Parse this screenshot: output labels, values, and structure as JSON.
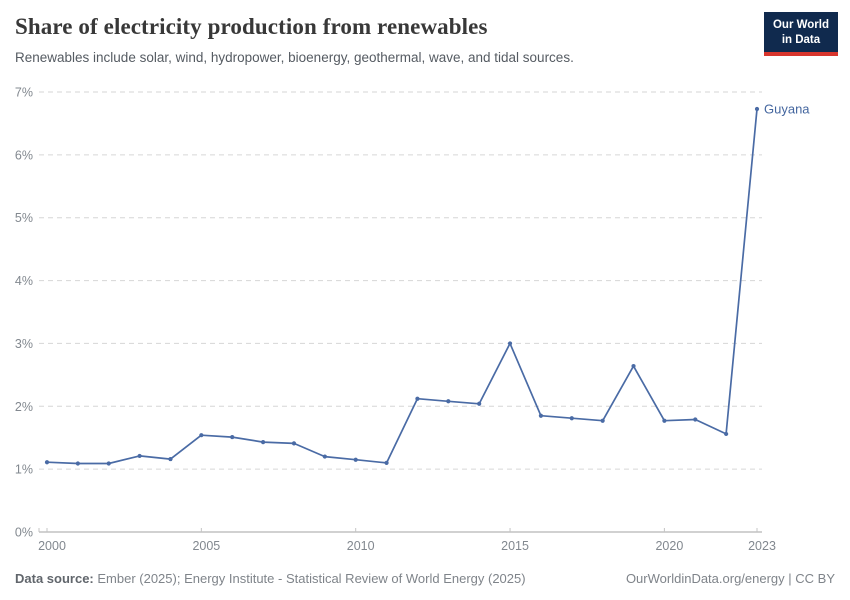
{
  "header": {
    "logo": {
      "line1": "Our World",
      "line2": "in Data"
    }
  },
  "footer": {
    "datasource_label": "Data source:",
    "datasource_text": " Ember (2025); Energy Institute - Statistical Review of World Energy (2025)",
    "attribution": "OurWorldinData.org/energy | CC BY"
  },
  "colors": {
    "line": "#4a6ba5",
    "entity_label": "#44669f",
    "gridline": "#d6d6d6",
    "axis": "#a3a3a3",
    "tick": "#c4c4c4",
    "logo_bg": "#102a4e",
    "logo_accent": "#d8352d"
  },
  "chart_data": {
    "type": "line",
    "title": "Share of electricity production from renewables",
    "subtitle": "Renewables include solar, wind, hydropower, bioenergy, geothermal, wave, and tidal sources.",
    "x": [
      2000,
      2001,
      2002,
      2003,
      2004,
      2005,
      2006,
      2007,
      2008,
      2009,
      2010,
      2011,
      2012,
      2013,
      2014,
      2015,
      2016,
      2017,
      2018,
      2019,
      2020,
      2021,
      2022,
      2023
    ],
    "series": [
      {
        "name": "Guyana",
        "values": [
          1.11,
          1.09,
          1.09,
          1.21,
          1.16,
          1.54,
          1.51,
          1.43,
          1.41,
          1.2,
          1.15,
          1.1,
          2.12,
          2.08,
          2.04,
          3.0,
          1.85,
          1.81,
          1.77,
          2.64,
          1.77,
          1.79,
          1.56,
          6.73
        ]
      }
    ],
    "xlabel": "",
    "ylabel": "",
    "xlim": [
      2000,
      2023
    ],
    "ylim": [
      0,
      7
    ],
    "xticks": [
      2000,
      2005,
      2010,
      2015,
      2020,
      2023
    ],
    "yticks": [
      0,
      1,
      2,
      3,
      4,
      5,
      6,
      7
    ],
    "ytick_format": "{v}%",
    "grid": "horizontal-dashed",
    "legend_position": "end-of-line-label",
    "end_label": "Guyana"
  }
}
